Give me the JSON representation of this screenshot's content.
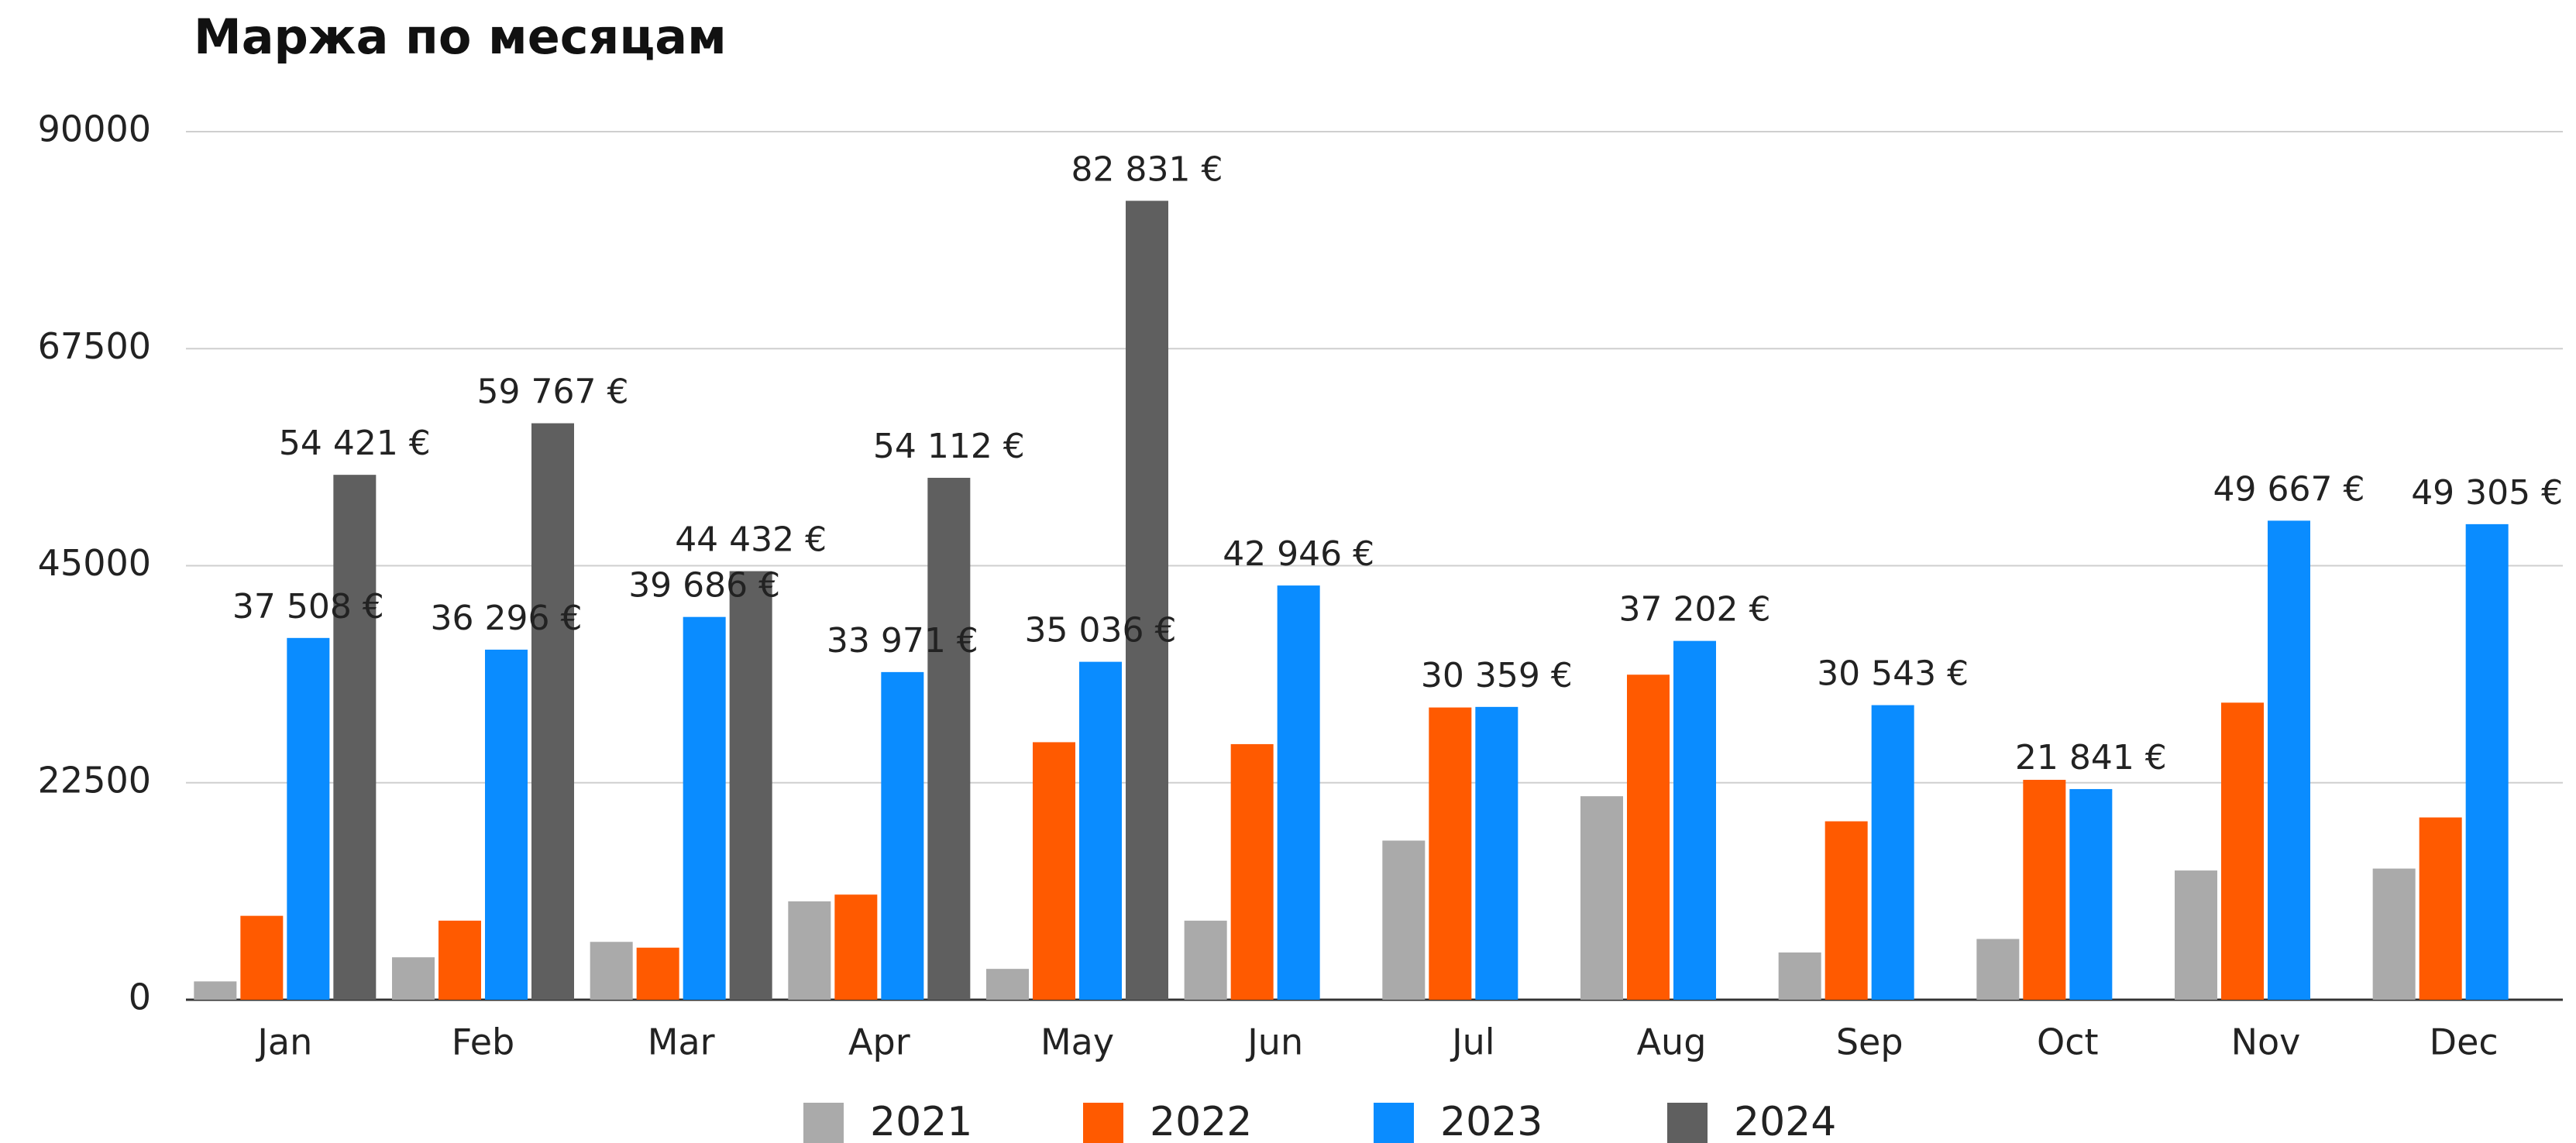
{
  "chart_data": {
    "type": "bar",
    "title": "Маржа по месяцам",
    "categories": [
      "Jan",
      "Feb",
      "Mar",
      "Apr",
      "May",
      "Jun",
      "Jul",
      "Aug",
      "Sep",
      "Oct",
      "Nov",
      "Dec"
    ],
    "series": [
      {
        "name": "2021",
        "color": "#aaaaaa",
        "values": [
          1900,
          4400,
          6000,
          10200,
          3200,
          8200,
          16500,
          21100,
          4900,
          6300,
          13400,
          13600
        ]
      },
      {
        "name": "2022",
        "color": "#ff5a00",
        "values": [
          8700,
          8200,
          5400,
          10900,
          26700,
          26500,
          30300,
          33700,
          18500,
          22800,
          30800,
          18900
        ]
      },
      {
        "name": "2023",
        "color": "#0a8cff",
        "values": [
          37508,
          36296,
          39686,
          33971,
          35036,
          42946,
          30359,
          37202,
          30543,
          21841,
          49667,
          49305
        ],
        "value_labels": [
          "37 508 €",
          "36 296 €",
          "39 686 €",
          "33 971 €",
          "35 036 €",
          "42 946 €",
          "30 359 €",
          "37 202 €",
          "30 543 €",
          "21 841 €",
          "49 667 €",
          "49 305 €"
        ]
      },
      {
        "name": "2024",
        "color": "#5f5f5f",
        "values": [
          54421,
          59767,
          44432,
          54112,
          82831,
          null,
          null,
          null,
          null,
          null,
          null,
          null
        ],
        "value_labels": [
          "54 421 €",
          "59 767 €",
          "44 432 €",
          "54 112 €",
          "82 831 €",
          null,
          null,
          null,
          null,
          null,
          null,
          null
        ]
      }
    ],
    "ylim": [
      0,
      90000
    ],
    "yticks": [
      0,
      22500,
      45000,
      67500,
      90000
    ],
    "grid": true,
    "legend": "bottom"
  }
}
